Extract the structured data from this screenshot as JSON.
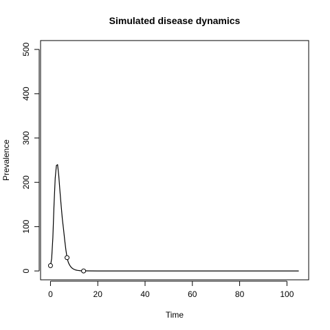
{
  "chart_data": {
    "type": "line",
    "title": "Simulated disease dynamics",
    "xlabel": "Time",
    "ylabel": "Prevalence",
    "xlim": [
      -4.2,
      109.2
    ],
    "ylim": [
      -20,
      520
    ],
    "x_ticks": [
      0,
      20,
      40,
      60,
      80,
      100
    ],
    "y_ticks": [
      0,
      100,
      200,
      300,
      400,
      500
    ],
    "grid": false,
    "legend": "none",
    "line_color": "#000000",
    "series": [
      {
        "style": "line",
        "x": [
          0,
          0.5,
          1,
          1.5,
          2,
          2.5,
          3,
          3.5,
          4,
          4.5,
          5,
          5.5,
          6,
          6.5,
          7,
          7.5,
          8,
          8.5,
          9,
          9.5,
          10,
          10.5,
          11,
          11.5,
          12,
          12.5,
          13,
          13.5,
          14,
          20,
          40,
          60,
          80,
          100,
          105
        ],
        "y": [
          12,
          28,
          75,
          150,
          210,
          238,
          240,
          215,
          180,
          148,
          118,
          95,
          70,
          48,
          30,
          20,
          14,
          10,
          7,
          5,
          3.5,
          2.5,
          1.7,
          1.2,
          0.9,
          0.6,
          0.4,
          0.3,
          0.2,
          0,
          0,
          0,
          0,
          0,
          0
        ]
      },
      {
        "style": "points",
        "x": [
          0,
          7,
          14
        ],
        "y": [
          12,
          30,
          0
        ]
      }
    ]
  }
}
